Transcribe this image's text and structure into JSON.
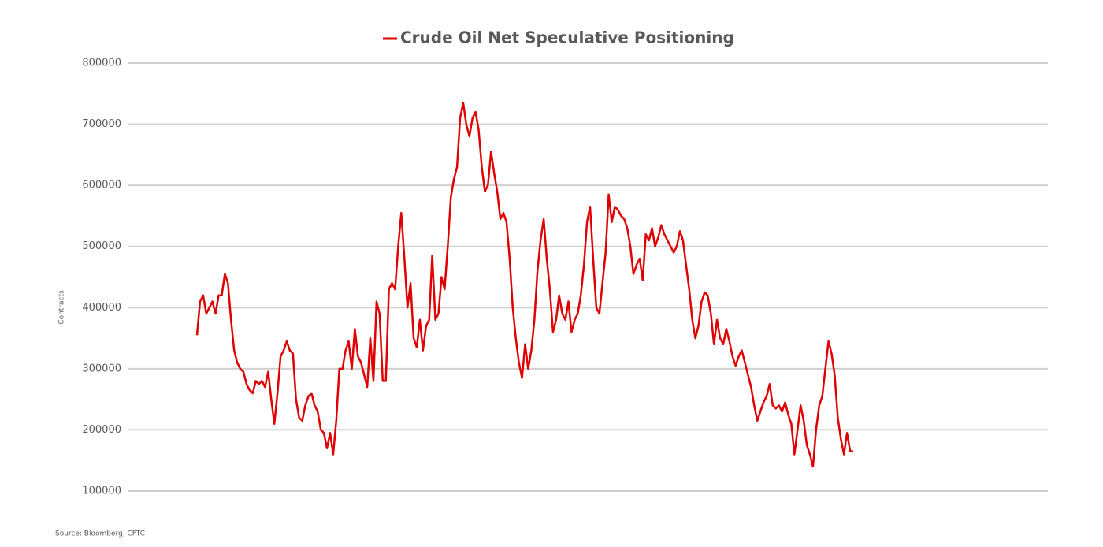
{
  "chart_data": {
    "type": "line",
    "series": [
      {
        "name": "Crude Oil Net Speculative Positioning",
        "color": "#e00000",
        "values": [
          355000,
          410000,
          420000,
          390000,
          400000,
          410000,
          390000,
          420000,
          420000,
          455000,
          440000,
          380000,
          330000,
          310000,
          300000,
          295000,
          275000,
          265000,
          260000,
          280000,
          275000,
          280000,
          270000,
          295000,
          250000,
          210000,
          260000,
          320000,
          330000,
          345000,
          330000,
          325000,
          250000,
          220000,
          215000,
          240000,
          255000,
          260000,
          240000,
          230000,
          200000,
          195000,
          170000,
          195000,
          160000,
          215000,
          300000,
          300000,
          330000,
          345000,
          300000,
          365000,
          320000,
          310000,
          290000,
          270000,
          350000,
          280000,
          410000,
          390000,
          280000,
          280000,
          430000,
          440000,
          430000,
          500000,
          555000,
          480000,
          400000,
          440000,
          350000,
          335000,
          380000,
          330000,
          370000,
          380000,
          485000,
          380000,
          390000,
          450000,
          430000,
          500000,
          580000,
          610000,
          630000,
          710000,
          735000,
          700000,
          680000,
          710000,
          720000,
          690000,
          630000,
          590000,
          600000,
          655000,
          620000,
          590000,
          545000,
          555000,
          540000,
          480000,
          400000,
          350000,
          310000,
          285000,
          340000,
          300000,
          330000,
          380000,
          460000,
          510000,
          545000,
          480000,
          430000,
          360000,
          380000,
          420000,
          390000,
          380000,
          410000,
          360000,
          380000,
          390000,
          420000,
          470000,
          540000,
          565000,
          480000,
          400000,
          390000,
          440000,
          490000,
          585000,
          540000,
          565000,
          560000,
          550000,
          545000,
          530000,
          500000,
          455000,
          470000,
          480000,
          445000,
          520000,
          510000,
          530000,
          500000,
          515000,
          535000,
          520000,
          510000,
          500000,
          490000,
          500000,
          525000,
          510000,
          470000,
          430000,
          380000,
          350000,
          370000,
          410000,
          425000,
          420000,
          390000,
          340000,
          380000,
          350000,
          340000,
          365000,
          345000,
          320000,
          305000,
          320000,
          330000,
          310000,
          290000,
          270000,
          240000,
          215000,
          230000,
          245000,
          255000,
          275000,
          240000,
          235000,
          240000,
          230000,
          245000,
          225000,
          210000,
          160000,
          200000,
          240000,
          215000,
          175000,
          160000,
          140000,
          200000,
          240000,
          255000,
          300000,
          345000,
          325000,
          290000,
          220000,
          185000,
          160000,
          195000,
          165000,
          165000
        ]
      }
    ],
    "y_label": "Contracts",
    "source": "Source: Bloomberg, CFTC",
    "ylim": [
      100000,
      800000
    ],
    "yticks": [
      100000,
      200000,
      300000,
      400000,
      500000,
      600000,
      700000,
      800000
    ],
    "grid": true
  }
}
